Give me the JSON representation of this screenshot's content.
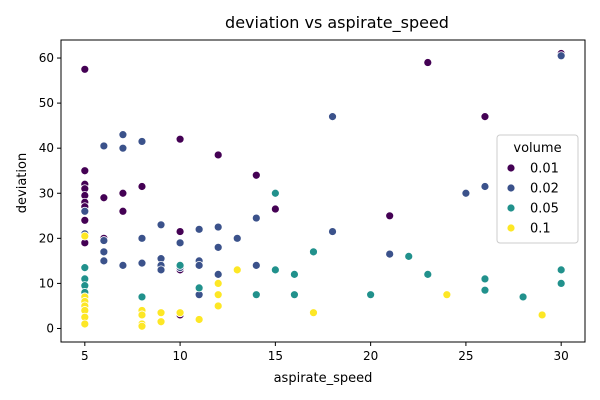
{
  "chart_data": {
    "type": "scatter",
    "title": "deviation vs aspirate_speed",
    "xlabel": "aspirate_speed",
    "ylabel": "deviation",
    "xlim": [
      3.75,
      31.25
    ],
    "ylim": [
      -3,
      64
    ],
    "xticks": [
      5,
      10,
      15,
      20,
      25,
      30
    ],
    "yticks": [
      0,
      10,
      20,
      30,
      40,
      50,
      60
    ],
    "grid": false,
    "legend": {
      "title": "volume",
      "placement": "center-right"
    },
    "series": [
      {
        "name": "0.01",
        "color": "#440154",
        "points": [
          [
            5,
            57.5
          ],
          [
            5,
            35
          ],
          [
            5,
            32
          ],
          [
            5,
            31
          ],
          [
            5,
            29.5
          ],
          [
            5,
            28
          ],
          [
            5,
            27
          ],
          [
            5,
            26
          ],
          [
            5,
            24
          ],
          [
            5,
            21
          ],
          [
            5,
            19
          ],
          [
            6,
            29
          ],
          [
            6,
            20
          ],
          [
            7,
            30
          ],
          [
            7,
            26
          ],
          [
            8,
            31.5
          ],
          [
            10,
            42
          ],
          [
            10,
            21.5
          ],
          [
            10,
            13
          ],
          [
            10,
            3
          ],
          [
            12,
            38.5
          ],
          [
            14,
            34
          ],
          [
            15,
            26.5
          ],
          [
            21,
            25
          ],
          [
            23,
            59
          ],
          [
            26,
            47
          ],
          [
            30,
            61
          ]
        ]
      },
      {
        "name": "0.02",
        "color": "#3b528b",
        "points": [
          [
            5,
            26
          ],
          [
            5,
            21
          ],
          [
            6,
            40.5
          ],
          [
            6,
            19.5
          ],
          [
            6,
            17
          ],
          [
            6,
            15
          ],
          [
            7,
            43
          ],
          [
            7,
            40
          ],
          [
            7,
            14
          ],
          [
            8,
            41.5
          ],
          [
            8,
            20
          ],
          [
            8,
            14.5
          ],
          [
            9,
            23
          ],
          [
            9,
            15.5
          ],
          [
            9,
            14
          ],
          [
            9,
            13
          ],
          [
            10,
            19
          ],
          [
            10,
            13.5
          ],
          [
            11,
            22
          ],
          [
            11,
            15
          ],
          [
            11,
            14
          ],
          [
            11,
            7.5
          ],
          [
            12,
            22.5
          ],
          [
            12,
            18
          ],
          [
            12,
            12
          ],
          [
            13,
            20
          ],
          [
            14,
            24.5
          ],
          [
            14,
            14
          ],
          [
            18,
            47
          ],
          [
            18,
            21.5
          ],
          [
            21,
            16.5
          ],
          [
            25,
            30
          ],
          [
            26,
            31.5
          ],
          [
            30,
            60.5
          ]
        ]
      },
      {
        "name": "0.05",
        "color": "#21918c",
        "points": [
          [
            5,
            13.5
          ],
          [
            5,
            11
          ],
          [
            5,
            9.5
          ],
          [
            5,
            8
          ],
          [
            5,
            7
          ],
          [
            8,
            7
          ],
          [
            10,
            14
          ],
          [
            11,
            9
          ],
          [
            14,
            7.5
          ],
          [
            15,
            30
          ],
          [
            15,
            13
          ],
          [
            16,
            12
          ],
          [
            16,
            7.5
          ],
          [
            17,
            17
          ],
          [
            20,
            7.5
          ],
          [
            22,
            16
          ],
          [
            23,
            12
          ],
          [
            26,
            11
          ],
          [
            26,
            8.5
          ],
          [
            28,
            7
          ],
          [
            30,
            13
          ],
          [
            30,
            10
          ]
        ]
      },
      {
        "name": "0.1",
        "color": "#fde725",
        "points": [
          [
            5,
            20.5
          ],
          [
            5,
            7
          ],
          [
            5,
            6
          ],
          [
            5,
            5
          ],
          [
            5,
            4
          ],
          [
            5,
            2.5
          ],
          [
            5,
            1
          ],
          [
            8,
            4
          ],
          [
            8,
            3
          ],
          [
            8,
            1
          ],
          [
            8,
            0.5
          ],
          [
            9,
            3.5
          ],
          [
            9,
            1.5
          ],
          [
            10,
            3.5
          ],
          [
            11,
            2
          ],
          [
            12,
            10
          ],
          [
            12,
            7.5
          ],
          [
            12,
            5
          ],
          [
            13,
            13
          ],
          [
            17,
            3.5
          ],
          [
            24,
            7.5
          ],
          [
            29,
            3
          ]
        ]
      }
    ]
  }
}
